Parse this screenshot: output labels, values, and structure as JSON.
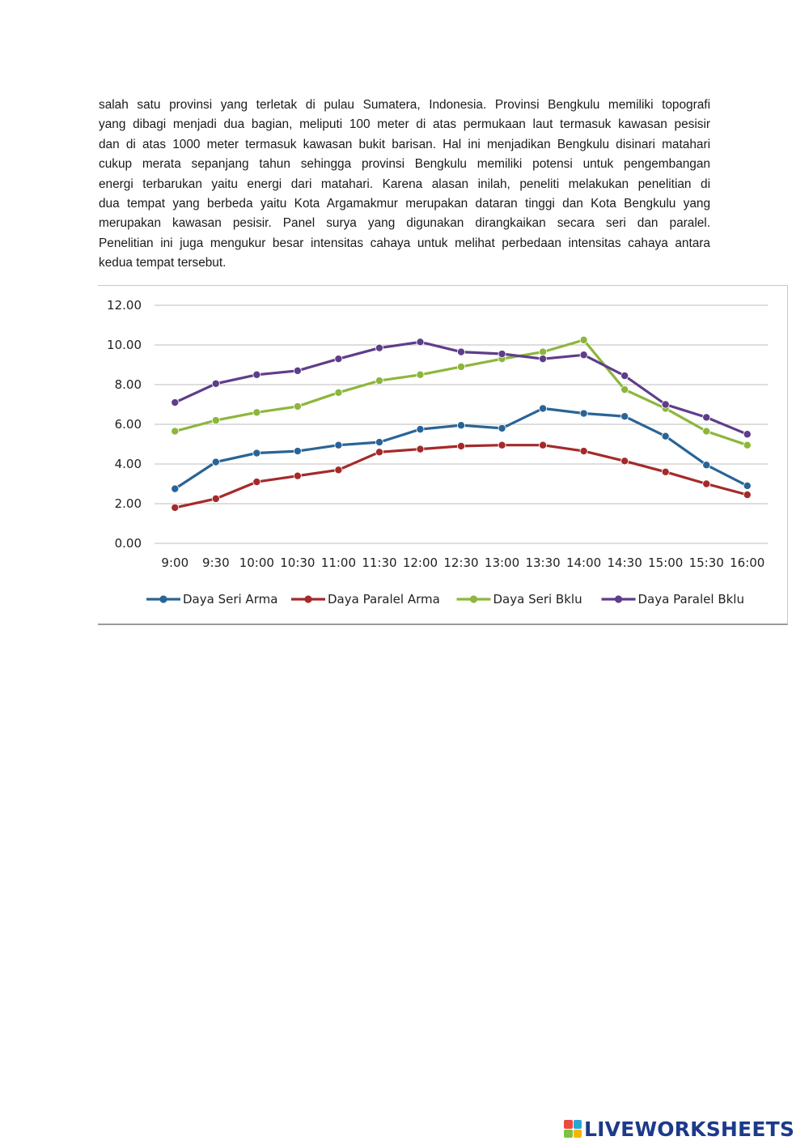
{
  "paragraph": {
    "lines": [
      "salah satu provinsi yang terletak di pulau Sumatera, Indonesia. Provinsi Bengkulu memiliki topografi",
      "yang dibagi menjadi dua bagian, meliputi 100 meter di atas permukaan laut termasuk kawasan pesisir",
      "dan di atas 1000 meter termasuk kawasan bukit barisan. Hal ini menjadikan Bengkulu disinari matahari",
      "cukup merata sepanjang tahun sehingga provinsi Bengkulu memiliki potensi untuk pengembangan",
      "energi terbarukan yaitu energi dari matahari. Karena alasan inilah, peneliti melakukan penelitian di",
      "dua tempat yang berbeda yaitu Kota Argamakmur merupakan dataran tinggi dan Kota Bengkulu yang",
      "merupakan kawasan pesisir. Panel surya yang digunakan dirangkaikan secara seri dan paralel.",
      "Penelitian ini juga mengukur besar intensitas cahaya untuk melihat perbedaan intensitas cahaya antara",
      "kedua tempat tersebut."
    ]
  },
  "chart_data": {
    "type": "line",
    "title": "",
    "xlabel": "",
    "ylabel": "",
    "ylim": [
      0,
      12
    ],
    "yticks": [
      "0.00",
      "2.00",
      "4.00",
      "6.00",
      "8.00",
      "10.00",
      "12.00"
    ],
    "grid": true,
    "legend_position": "bottom",
    "categories": [
      "9:00",
      "9:30",
      "10:00",
      "10:30",
      "11:00",
      "11:30",
      "12:00",
      "12:30",
      "13:00",
      "13:30",
      "14:00",
      "14:30",
      "15:00",
      "15:30",
      "16:00"
    ],
    "series": [
      {
        "name": "Daya Seri Arma",
        "color": "#2a6496",
        "values": [
          2.75,
          4.1,
          4.55,
          4.65,
          4.95,
          5.1,
          5.75,
          5.95,
          5.8,
          6.8,
          6.55,
          6.4,
          5.4,
          3.95,
          2.9
        ]
      },
      {
        "name": "Daya Paralel Arma",
        "color": "#a52a2a",
        "values": [
          1.8,
          2.25,
          3.1,
          3.4,
          3.7,
          4.6,
          4.75,
          4.9,
          4.95,
          4.95,
          4.65,
          4.15,
          3.6,
          3.0,
          2.45
        ]
      },
      {
        "name": "Daya Seri Bklu",
        "color": "#8db63c",
        "values": [
          5.65,
          6.2,
          6.6,
          6.9,
          7.6,
          8.2,
          8.5,
          8.9,
          9.3,
          9.65,
          10.25,
          7.75,
          6.8,
          5.65,
          4.95
        ]
      },
      {
        "name": "Daya Paralel Bklu",
        "color": "#5e3d8a",
        "values": [
          7.1,
          8.05,
          8.5,
          8.7,
          9.3,
          9.85,
          10.15,
          9.65,
          9.55,
          9.3,
          9.5,
          8.45,
          7.0,
          6.35,
          5.5
        ]
      }
    ]
  },
  "branding": {
    "text": "LIVEWORKSHEETS",
    "logo_colors": [
      "#e94b3c",
      "#2aa6d6",
      "#7dc242",
      "#f7b500"
    ]
  }
}
